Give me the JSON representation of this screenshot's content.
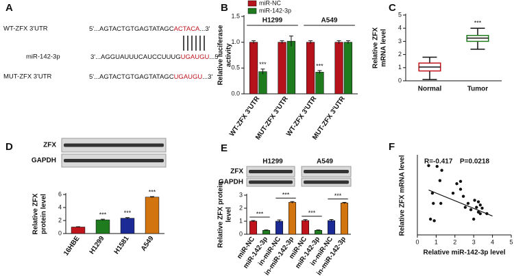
{
  "sequence_panel": {
    "label": "A",
    "rows": [
      {
        "name": "WT-ZFX 3'UTR",
        "prefix": "5'...AGTACTGTGAGTATAGC",
        "site": "ACTACA",
        "suffix": "...3'"
      },
      {
        "name": "miR-142-3p",
        "prefix": "3'...AGGUAUUUCAUCCUUUG",
        "site": "UGAUGU",
        "suffix": "...5'"
      },
      {
        "name": "MUT-ZFX 3'UTR",
        "prefix": "5'...AGTACTGTGAGTATAGC",
        "site": "UGAUGU",
        "suffix": "...3'"
      }
    ]
  },
  "chart_data": [
    {
      "type": "bar",
      "label": "B",
      "ylabel": [
        "Relative luciferase",
        "activity"
      ],
      "categories": [
        "WT-ZFX 3'UTR",
        "MUT-ZFX 3'UTR",
        "WT-ZFX 3'UTR",
        "MUT-ZFX 3'UTR"
      ],
      "series": [
        {
          "name": "miR-NC",
          "color": "#b5121b",
          "values": [
            1.0,
            1.0,
            1.0,
            1.0
          ],
          "errors": [
            0.03,
            0.03,
            0.03,
            0.03
          ]
        },
        {
          "name": "miR-142-3p",
          "color": "#1e7b1e",
          "values": [
            0.43,
            1.02,
            0.42,
            1.0
          ],
          "errors": [
            0.05,
            0.1,
            0.03,
            0.03
          ]
        }
      ],
      "groups": [
        {
          "label": "H1299",
          "categories": [
            0,
            1
          ]
        },
        {
          "label": "A549",
          "categories": [
            2,
            3
          ]
        }
      ],
      "annotations": [
        {
          "text": "***",
          "series": 1,
          "category": 0
        },
        {
          "text": "***",
          "series": 1,
          "category": 2
        }
      ],
      "ylim": [
        0,
        1.5
      ],
      "yticks": [
        {
          "value": 0,
          "label": "0.0"
        },
        {
          "value": 0.5,
          "label": "0.5"
        },
        {
          "value": 1,
          "label": "1.0"
        },
        {
          "value": 1.5,
          "label": "1.5"
        }
      ]
    },
    {
      "type": "box",
      "label": "C",
      "ylabel": [
        "Relative ZFX",
        "mRNA level"
      ],
      "categories": [
        "Normal",
        "Tumor"
      ],
      "colors": [
        "#c0141c",
        "#1e7b1e"
      ],
      "boxes": [
        {
          "min": 0.1,
          "q1": 0.75,
          "median": 1.05,
          "q3": 1.35,
          "max": 1.8
        },
        {
          "min": 2.4,
          "q1": 3.0,
          "median": 3.25,
          "q3": 3.45,
          "max": 4.0
        }
      ],
      "annotations": [
        {
          "text": "***",
          "category": 1
        }
      ],
      "ylim": [
        0,
        5
      ],
      "yticks": [
        0,
        1,
        2,
        3,
        4,
        5
      ]
    },
    {
      "type": "bar",
      "label": "D",
      "ylabel": [
        "Relative ZFX",
        "protein level"
      ],
      "blot_labels": [
        "ZFX",
        "GAPDH"
      ],
      "categories": [
        "16HBE",
        "H1299",
        "H1581",
        "A549"
      ],
      "values": [
        1.0,
        2.1,
        2.35,
        5.6
      ],
      "errors": [
        0.05,
        0.1,
        0.1,
        0.08
      ],
      "colors": [
        "#c0141c",
        "#1e7b1e",
        "#1c2a96",
        "#d2740f"
      ],
      "annotations": [
        {
          "text": "***",
          "category": 1
        },
        {
          "text": "***",
          "category": 2
        },
        {
          "text": "***",
          "category": 3
        }
      ],
      "ylim": [
        0,
        6
      ],
      "yticks": [
        0,
        2,
        4,
        6
      ]
    },
    {
      "type": "bar",
      "label": "E",
      "ylabel": [
        "Relative ZFX protein",
        "level"
      ],
      "blot_labels": [
        "ZFX",
        "GAPDH"
      ],
      "categories": [
        "miR-NC",
        "miR-142-3p",
        "in-miR-NC",
        "in-miR-142-3p",
        "miR-NC",
        "miR-142-3p",
        "in-miR-NC",
        "in-miR-142-3p"
      ],
      "values": [
        1.0,
        0.3,
        1.0,
        2.45,
        1.05,
        0.3,
        1.05,
        2.4
      ],
      "errors": [
        0.05,
        0.03,
        0.1,
        0.06,
        0.07,
        0.03,
        0.08,
        0.05
      ],
      "colors": [
        "#c0141c",
        "#1e7b1e",
        "#1c2a96",
        "#d2740f",
        "#c0141c",
        "#1e7b1e",
        "#1c2a96",
        "#d2740f"
      ],
      "groups": [
        {
          "label": "H1299",
          "categories": [
            0,
            3
          ]
        },
        {
          "label": "A549",
          "categories": [
            4,
            7
          ]
        }
      ],
      "annotations": [
        {
          "text": "***",
          "between": [
            0,
            1
          ]
        },
        {
          "text": "***",
          "between": [
            2,
            3
          ]
        },
        {
          "text": "***",
          "between": [
            4,
            5
          ]
        },
        {
          "text": "***",
          "between": [
            6,
            7
          ]
        }
      ],
      "ylim": [
        0,
        3
      ],
      "yticks": [
        0,
        1,
        2,
        3
      ]
    },
    {
      "type": "scatter",
      "label": "F",
      "ylabel": [
        "Relative ZFX mRNA level"
      ],
      "xlabel": "Relative miR-142-3p level",
      "annotations": [
        "R=-0.417",
        "P=0.0218"
      ],
      "color": "#111111",
      "x": [
        0.6,
        1.05,
        1.3,
        1.2,
        0.8,
        1.25,
        0.85,
        0.7,
        0.9,
        1.9,
        2.1,
        2.3,
        2.3,
        2.45,
        2.55,
        2.7,
        2.85,
        3.05,
        3.15,
        3.25,
        3.25,
        3.35,
        3.35,
        3.45,
        3.0,
        3.7
      ],
      "y": [
        0.88,
        0.87,
        0.82,
        0.69,
        0.53,
        0.4,
        0.4,
        0.2,
        0.18,
        0.53,
        0.65,
        0.68,
        0.58,
        0.49,
        0.35,
        0.4,
        0.32,
        0.44,
        0.35,
        0.42,
        0.29,
        0.38,
        0.27,
        0.34,
        0.2,
        0.27
      ],
      "fit": {
        "x": [
          0.6,
          4.0
        ],
        "y": [
          0.57,
          0.24
        ]
      },
      "xlim": [
        0,
        5
      ],
      "xticks": [
        0,
        1,
        2,
        3,
        4,
        5
      ],
      "ylim": [
        0,
        1
      ]
    }
  ]
}
